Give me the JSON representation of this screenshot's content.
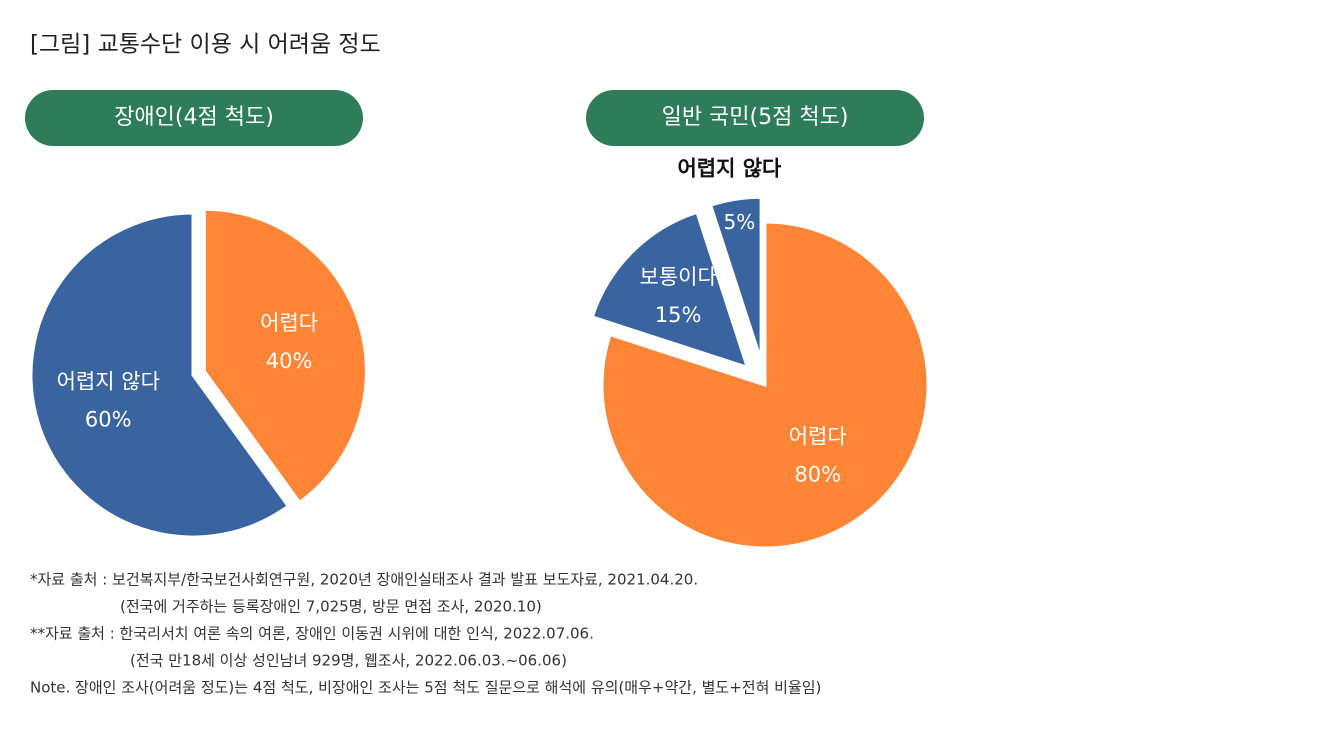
{
  "title": "[그림] 교통수단 이용 시 어려움 정도",
  "chart_data": [
    {
      "type": "pie",
      "title": "장애인(4점 척도)",
      "categories": [
        "어렵다",
        "어렵지 않다"
      ],
      "values": [
        40,
        60
      ],
      "value_labels": [
        "40%",
        "60%"
      ],
      "colors": [
        "#fd8535",
        "#3a64a0"
      ]
    },
    {
      "type": "pie",
      "title": "일반 국민(5점 척도)",
      "categories": [
        "어렵다",
        "보통이다",
        "어렵지 않다"
      ],
      "values": [
        80,
        15,
        5
      ],
      "value_labels": [
        "80%",
        "15%",
        "5%"
      ],
      "colors": [
        "#fd8535",
        "#3a64a0",
        "#3a64a0"
      ]
    }
  ],
  "notes": [
    "*자료 출처 : 보건복지부/한국보건사회연구원, 2020년 장애인실태조사 결과 발표 보도자료, 2021.04.20.",
    "(전국에 거주하는 등록장애인 7,025명, 방문 면접 조사, 2020.10)",
    "**자료 출처 : 한국리서치 여론 속의 여론, 장애인 이동권 시위에 대한 인식, 2022.07.06.",
    "(전국 만18세 이상 성인남녀 929명, 웹조사, 2022.06.03.~06.06)",
    "Note. 장애인 조사(어려움 정도)는 4점 척도, 비장애인 조사는 5점 척도 질문으로 해석에 유의(매우+약간, 별도+전혀 비율임)"
  ]
}
